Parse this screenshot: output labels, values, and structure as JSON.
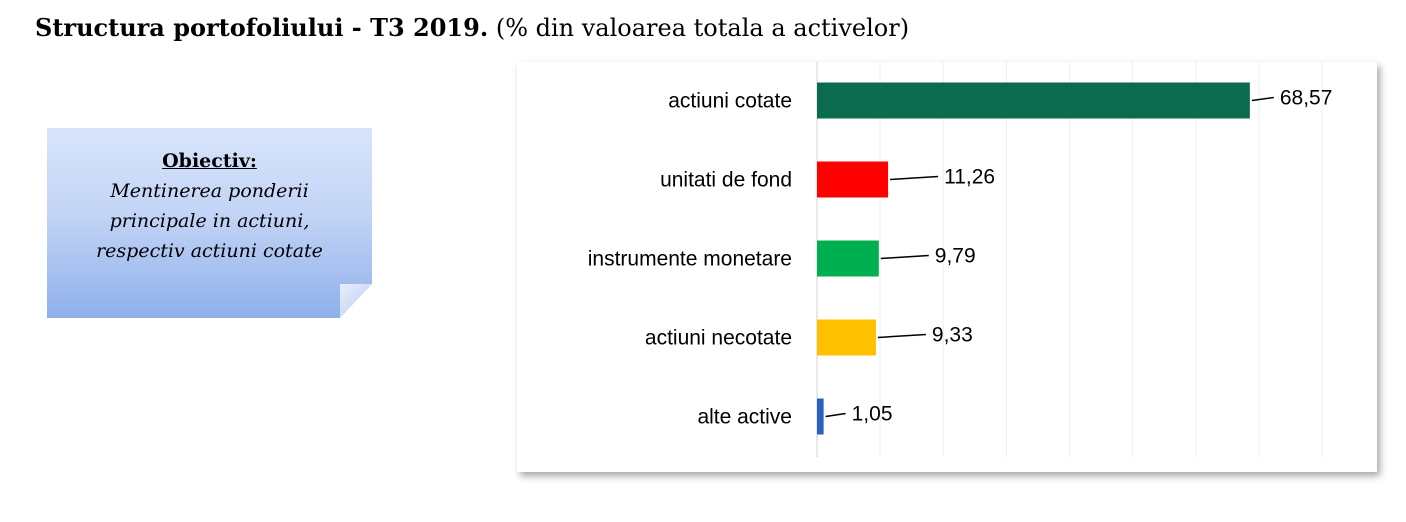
{
  "title": {
    "main": "Structura portofoliului -  T3 2019.",
    "sub": "(% din valoarea totala a activelor)"
  },
  "note": {
    "heading": "Obiectiv:",
    "lines": [
      "Mentinerea ponderii",
      "principale in actiuni,",
      "respectiv actiuni cotate"
    ]
  },
  "chart_data": {
    "type": "bar",
    "orientation": "horizontal",
    "categories": [
      "actiuni cotate",
      "unitati de fond",
      "instrumente monetare",
      "actiuni necotate",
      "alte active"
    ],
    "values": [
      68.57,
      11.26,
      9.79,
      9.33,
      1.05
    ],
    "value_labels": [
      "68,57",
      "11,26",
      "9,79",
      "9,33",
      "1,05"
    ],
    "colors": [
      "#0a6b4f",
      "#ff0000",
      "#00b050",
      "#ffc000",
      "#2a62c0"
    ],
    "xlim": [
      0,
      80
    ],
    "grid": true,
    "title": "",
    "xlabel": "",
    "ylabel": ""
  }
}
